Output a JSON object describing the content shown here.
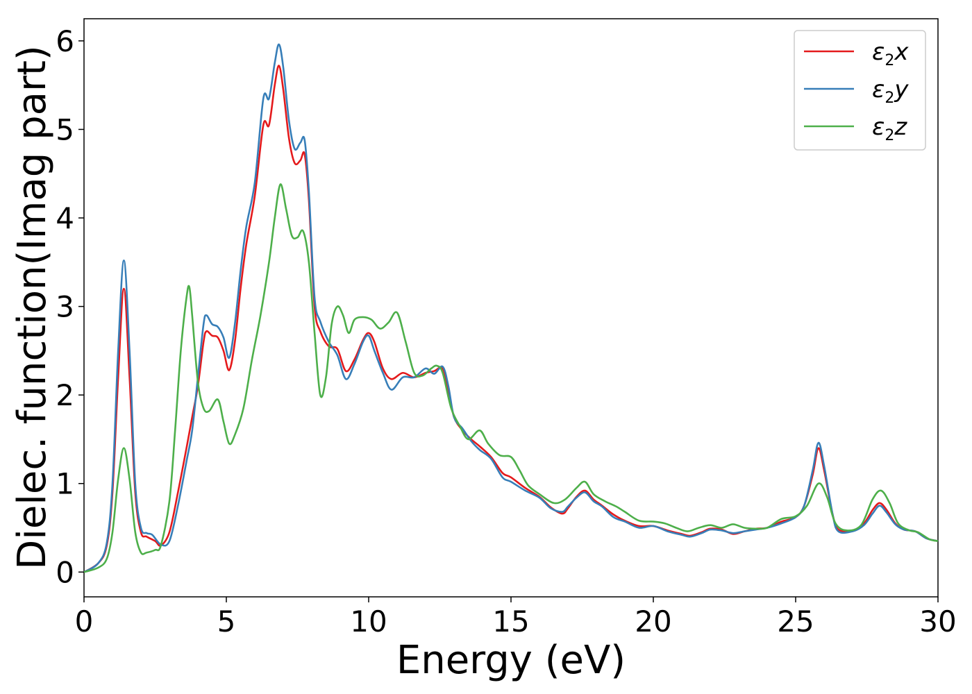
{
  "chart_data": {
    "type": "line",
    "title": "",
    "xlabel": "Energy (eV)",
    "ylabel": "Dielec. function(Imag part)",
    "xlim": [
      0,
      30
    ],
    "ylim": [
      -0.28,
      6.25
    ],
    "xticks": [
      0,
      5,
      10,
      15,
      20,
      25,
      30
    ],
    "yticks": [
      0,
      1,
      2,
      3,
      4,
      5,
      6
    ],
    "grid": false,
    "legend_position": "top-right",
    "series": [
      {
        "name": "ε2x",
        "legend_base": "ε",
        "legend_sub": "2",
        "legend_tail": "x",
        "color": "#e41a1c",
        "points": [
          [
            0,
            0
          ],
          [
            0.5,
            0.1
          ],
          [
            0.8,
            0.3
          ],
          [
            1.0,
            0.9
          ],
          [
            1.2,
            2.2
          ],
          [
            1.4,
            3.2
          ],
          [
            1.6,
            2.2
          ],
          [
            1.8,
            0.9
          ],
          [
            2.0,
            0.45
          ],
          [
            2.2,
            0.4
          ],
          [
            2.5,
            0.35
          ],
          [
            2.7,
            0.3
          ],
          [
            3.0,
            0.45
          ],
          [
            3.3,
            0.9
          ],
          [
            3.6,
            1.4
          ],
          [
            3.8,
            1.75
          ],
          [
            4.0,
            2.1
          ],
          [
            4.2,
            2.6
          ],
          [
            4.3,
            2.72
          ],
          [
            4.5,
            2.67
          ],
          [
            4.7,
            2.65
          ],
          [
            4.9,
            2.5
          ],
          [
            5.1,
            2.28
          ],
          [
            5.3,
            2.6
          ],
          [
            5.5,
            3.2
          ],
          [
            5.7,
            3.7
          ],
          [
            6.0,
            4.25
          ],
          [
            6.3,
            5.05
          ],
          [
            6.5,
            5.05
          ],
          [
            6.7,
            5.5
          ],
          [
            6.85,
            5.72
          ],
          [
            7.0,
            5.45
          ],
          [
            7.2,
            4.9
          ],
          [
            7.4,
            4.62
          ],
          [
            7.6,
            4.65
          ],
          [
            7.75,
            4.72
          ],
          [
            7.9,
            4.2
          ],
          [
            8.1,
            3.0
          ],
          [
            8.3,
            2.72
          ],
          [
            8.6,
            2.55
          ],
          [
            8.9,
            2.52
          ],
          [
            9.2,
            2.27
          ],
          [
            9.5,
            2.4
          ],
          [
            9.8,
            2.62
          ],
          [
            10.0,
            2.7
          ],
          [
            10.2,
            2.6
          ],
          [
            10.5,
            2.3
          ],
          [
            10.8,
            2.18
          ],
          [
            11.2,
            2.25
          ],
          [
            11.6,
            2.2
          ],
          [
            12.0,
            2.25
          ],
          [
            12.3,
            2.27
          ],
          [
            12.6,
            2.3
          ],
          [
            12.8,
            2.05
          ],
          [
            13.0,
            1.75
          ],
          [
            13.3,
            1.6
          ],
          [
            13.6,
            1.5
          ],
          [
            13.9,
            1.42
          ],
          [
            14.3,
            1.3
          ],
          [
            14.7,
            1.12
          ],
          [
            15.0,
            1.07
          ],
          [
            15.5,
            0.95
          ],
          [
            16.0,
            0.85
          ],
          [
            16.4,
            0.73
          ],
          [
            16.8,
            0.66
          ],
          [
            17.0,
            0.72
          ],
          [
            17.3,
            0.85
          ],
          [
            17.6,
            0.92
          ],
          [
            17.9,
            0.82
          ],
          [
            18.2,
            0.75
          ],
          [
            18.6,
            0.65
          ],
          [
            19.0,
            0.58
          ],
          [
            19.5,
            0.52
          ],
          [
            20.0,
            0.52
          ],
          [
            20.5,
            0.47
          ],
          [
            21.0,
            0.43
          ],
          [
            21.3,
            0.41
          ],
          [
            21.7,
            0.45
          ],
          [
            22.0,
            0.49
          ],
          [
            22.4,
            0.48
          ],
          [
            22.8,
            0.43
          ],
          [
            23.2,
            0.46
          ],
          [
            23.6,
            0.49
          ],
          [
            24.0,
            0.5
          ],
          [
            24.5,
            0.57
          ],
          [
            25.0,
            0.62
          ],
          [
            25.3,
            0.75
          ],
          [
            25.6,
            1.1
          ],
          [
            25.8,
            1.4
          ],
          [
            26.0,
            1.15
          ],
          [
            26.3,
            0.65
          ],
          [
            26.5,
            0.48
          ],
          [
            27.0,
            0.47
          ],
          [
            27.4,
            0.55
          ],
          [
            27.7,
            0.7
          ],
          [
            27.95,
            0.78
          ],
          [
            28.2,
            0.7
          ],
          [
            28.5,
            0.55
          ],
          [
            28.8,
            0.48
          ],
          [
            29.2,
            0.46
          ],
          [
            29.6,
            0.38
          ],
          [
            30.0,
            0.35
          ]
        ]
      },
      {
        "name": "ε2y",
        "legend_base": "ε",
        "legend_sub": "2",
        "legend_tail": "y",
        "color": "#377eb8",
        "points": [
          [
            0,
            0
          ],
          [
            0.5,
            0.1
          ],
          [
            0.8,
            0.33
          ],
          [
            1.0,
            1.0
          ],
          [
            1.2,
            2.5
          ],
          [
            1.4,
            3.52
          ],
          [
            1.6,
            2.5
          ],
          [
            1.8,
            1.0
          ],
          [
            2.0,
            0.5
          ],
          [
            2.2,
            0.44
          ],
          [
            2.4,
            0.42
          ],
          [
            2.7,
            0.31
          ],
          [
            3.0,
            0.35
          ],
          [
            3.3,
            0.75
          ],
          [
            3.6,
            1.25
          ],
          [
            3.8,
            1.6
          ],
          [
            4.0,
            2.2
          ],
          [
            4.2,
            2.8
          ],
          [
            4.3,
            2.9
          ],
          [
            4.5,
            2.8
          ],
          [
            4.7,
            2.77
          ],
          [
            4.9,
            2.65
          ],
          [
            5.1,
            2.42
          ],
          [
            5.3,
            2.8
          ],
          [
            5.5,
            3.4
          ],
          [
            5.7,
            3.9
          ],
          [
            6.0,
            4.4
          ],
          [
            6.3,
            5.35
          ],
          [
            6.5,
            5.35
          ],
          [
            6.7,
            5.75
          ],
          [
            6.85,
            5.96
          ],
          [
            7.0,
            5.7
          ],
          [
            7.2,
            5.1
          ],
          [
            7.4,
            4.78
          ],
          [
            7.6,
            4.85
          ],
          [
            7.75,
            4.88
          ],
          [
            7.9,
            4.3
          ],
          [
            8.1,
            3.1
          ],
          [
            8.3,
            2.83
          ],
          [
            8.6,
            2.6
          ],
          [
            8.9,
            2.45
          ],
          [
            9.2,
            2.18
          ],
          [
            9.5,
            2.35
          ],
          [
            9.8,
            2.6
          ],
          [
            10.0,
            2.67
          ],
          [
            10.2,
            2.5
          ],
          [
            10.5,
            2.25
          ],
          [
            10.8,
            2.06
          ],
          [
            11.2,
            2.2
          ],
          [
            11.6,
            2.2
          ],
          [
            12.0,
            2.3
          ],
          [
            12.3,
            2.24
          ],
          [
            12.6,
            2.32
          ],
          [
            12.8,
            2.1
          ],
          [
            13.0,
            1.75
          ],
          [
            13.3,
            1.62
          ],
          [
            13.6,
            1.48
          ],
          [
            13.9,
            1.38
          ],
          [
            14.3,
            1.28
          ],
          [
            14.7,
            1.07
          ],
          [
            15.0,
            1.02
          ],
          [
            15.5,
            0.92
          ],
          [
            16.0,
            0.84
          ],
          [
            16.4,
            0.72
          ],
          [
            16.8,
            0.68
          ],
          [
            17.0,
            0.74
          ],
          [
            17.3,
            0.84
          ],
          [
            17.6,
            0.9
          ],
          [
            17.9,
            0.8
          ],
          [
            18.2,
            0.74
          ],
          [
            18.6,
            0.62
          ],
          [
            19.0,
            0.57
          ],
          [
            19.5,
            0.5
          ],
          [
            20.0,
            0.52
          ],
          [
            20.5,
            0.46
          ],
          [
            21.0,
            0.42
          ],
          [
            21.3,
            0.4
          ],
          [
            21.7,
            0.44
          ],
          [
            22.0,
            0.48
          ],
          [
            22.4,
            0.47
          ],
          [
            22.8,
            0.44
          ],
          [
            23.2,
            0.46
          ],
          [
            23.6,
            0.48
          ],
          [
            24.0,
            0.5
          ],
          [
            24.5,
            0.55
          ],
          [
            25.0,
            0.62
          ],
          [
            25.3,
            0.75
          ],
          [
            25.6,
            1.15
          ],
          [
            25.8,
            1.46
          ],
          [
            26.0,
            1.2
          ],
          [
            26.3,
            0.65
          ],
          [
            26.5,
            0.46
          ],
          [
            27.0,
            0.46
          ],
          [
            27.4,
            0.53
          ],
          [
            27.7,
            0.66
          ],
          [
            27.95,
            0.75
          ],
          [
            28.2,
            0.67
          ],
          [
            28.5,
            0.54
          ],
          [
            28.8,
            0.48
          ],
          [
            29.2,
            0.46
          ],
          [
            29.6,
            0.38
          ],
          [
            30.0,
            0.35
          ]
        ]
      },
      {
        "name": "ε2z",
        "legend_base": "ε",
        "legend_sub": "2",
        "legend_tail": "z",
        "color": "#4daf4a",
        "points": [
          [
            0,
            0
          ],
          [
            0.5,
            0.05
          ],
          [
            0.8,
            0.15
          ],
          [
            1.0,
            0.45
          ],
          [
            1.2,
            1.05
          ],
          [
            1.4,
            1.4
          ],
          [
            1.6,
            1.05
          ],
          [
            1.8,
            0.45
          ],
          [
            2.0,
            0.22
          ],
          [
            2.2,
            0.22
          ],
          [
            2.5,
            0.25
          ],
          [
            2.7,
            0.3
          ],
          [
            3.0,
            0.8
          ],
          [
            3.2,
            1.6
          ],
          [
            3.4,
            2.5
          ],
          [
            3.6,
            3.1
          ],
          [
            3.7,
            3.22
          ],
          [
            3.8,
            2.9
          ],
          [
            4.0,
            2.15
          ],
          [
            4.2,
            1.85
          ],
          [
            4.4,
            1.82
          ],
          [
            4.7,
            1.95
          ],
          [
            4.9,
            1.7
          ],
          [
            5.1,
            1.45
          ],
          [
            5.3,
            1.55
          ],
          [
            5.6,
            1.85
          ],
          [
            5.9,
            2.4
          ],
          [
            6.2,
            2.9
          ],
          [
            6.5,
            3.5
          ],
          [
            6.7,
            4.0
          ],
          [
            6.9,
            4.38
          ],
          [
            7.1,
            4.1
          ],
          [
            7.3,
            3.8
          ],
          [
            7.5,
            3.78
          ],
          [
            7.7,
            3.85
          ],
          [
            7.9,
            3.5
          ],
          [
            8.1,
            2.7
          ],
          [
            8.3,
            2.0
          ],
          [
            8.5,
            2.2
          ],
          [
            8.7,
            2.8
          ],
          [
            8.9,
            3.0
          ],
          [
            9.1,
            2.9
          ],
          [
            9.3,
            2.7
          ],
          [
            9.5,
            2.85
          ],
          [
            9.8,
            2.88
          ],
          [
            10.1,
            2.85
          ],
          [
            10.4,
            2.75
          ],
          [
            10.7,
            2.82
          ],
          [
            11.0,
            2.93
          ],
          [
            11.3,
            2.6
          ],
          [
            11.6,
            2.25
          ],
          [
            11.9,
            2.22
          ],
          [
            12.2,
            2.3
          ],
          [
            12.4,
            2.33
          ],
          [
            12.6,
            2.25
          ],
          [
            12.9,
            1.85
          ],
          [
            13.2,
            1.65
          ],
          [
            13.5,
            1.5
          ],
          [
            13.9,
            1.6
          ],
          [
            14.2,
            1.45
          ],
          [
            14.6,
            1.32
          ],
          [
            15.0,
            1.3
          ],
          [
            15.3,
            1.15
          ],
          [
            15.6,
            0.98
          ],
          [
            16.0,
            0.88
          ],
          [
            16.5,
            0.78
          ],
          [
            16.9,
            0.82
          ],
          [
            17.3,
            0.95
          ],
          [
            17.6,
            1.02
          ],
          [
            17.9,
            0.88
          ],
          [
            18.3,
            0.8
          ],
          [
            18.7,
            0.74
          ],
          [
            19.0,
            0.68
          ],
          [
            19.5,
            0.58
          ],
          [
            20.0,
            0.57
          ],
          [
            20.4,
            0.55
          ],
          [
            20.8,
            0.5
          ],
          [
            21.2,
            0.46
          ],
          [
            21.6,
            0.5
          ],
          [
            22.0,
            0.53
          ],
          [
            22.4,
            0.5
          ],
          [
            22.8,
            0.54
          ],
          [
            23.2,
            0.5
          ],
          [
            23.6,
            0.49
          ],
          [
            24.0,
            0.5
          ],
          [
            24.5,
            0.6
          ],
          [
            25.0,
            0.63
          ],
          [
            25.4,
            0.75
          ],
          [
            25.8,
            1.0
          ],
          [
            26.1,
            0.85
          ],
          [
            26.4,
            0.55
          ],
          [
            26.8,
            0.47
          ],
          [
            27.3,
            0.53
          ],
          [
            27.7,
            0.82
          ],
          [
            28.0,
            0.92
          ],
          [
            28.3,
            0.78
          ],
          [
            28.6,
            0.55
          ],
          [
            29.0,
            0.47
          ],
          [
            29.3,
            0.45
          ],
          [
            29.7,
            0.37
          ],
          [
            30.0,
            0.35
          ]
        ]
      }
    ]
  }
}
